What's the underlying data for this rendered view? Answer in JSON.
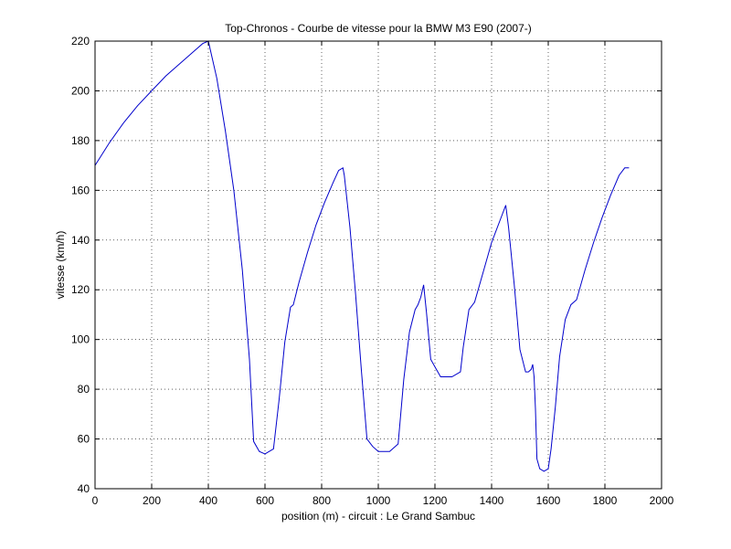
{
  "chart_data": {
    "type": "line",
    "title": "Top-Chronos - Courbe de vitesse pour la BMW M3 E90 (2007-)",
    "xlabel": "position (m) - circuit : Le Grand Sambuc",
    "ylabel": "vitesse (km/h)",
    "xlim": [
      0,
      2000
    ],
    "ylim": [
      40,
      220
    ],
    "xticks": [
      "0",
      "200",
      "400",
      "600",
      "800",
      "1000",
      "1200",
      "1400",
      "1600",
      "1800",
      "2000"
    ],
    "yticks": [
      "40",
      "60",
      "80",
      "100",
      "120",
      "140",
      "160",
      "180",
      "200",
      "220"
    ],
    "grid": true,
    "series": [
      {
        "color": "#0000cc",
        "x": [
          0,
          50,
          100,
          150,
          200,
          250,
          300,
          350,
          380,
          400,
          430,
          460,
          490,
          520,
          545,
          560,
          580,
          600,
          615,
          630,
          650,
          670,
          690,
          700,
          720,
          750,
          780,
          810,
          840,
          860,
          875,
          880,
          900,
          920,
          940,
          960,
          980,
          1000,
          1020,
          1040,
          1060,
          1070,
          1090,
          1110,
          1130,
          1140,
          1150,
          1160,
          1170,
          1185,
          1200,
          1220,
          1240,
          1260,
          1290,
          1300,
          1320,
          1340,
          1370,
          1400,
          1430,
          1450,
          1460,
          1480,
          1500,
          1520,
          1530,
          1540,
          1545,
          1550,
          1555,
          1560,
          1570,
          1585,
          1600,
          1610,
          1625,
          1640,
          1660,
          1680,
          1700,
          1730,
          1760,
          1790,
          1820,
          1850,
          1870,
          1885
        ],
        "values": [
          170,
          179,
          187,
          194,
          200,
          206,
          211,
          216,
          219,
          220,
          205,
          184,
          160,
          128,
          92,
          59,
          55,
          54,
          55,
          56,
          76,
          99,
          113,
          114,
          123,
          135,
          146,
          155,
          163,
          168,
          169,
          166,
          145,
          118,
          88,
          60,
          57,
          55,
          55,
          55,
          57,
          58,
          84,
          103,
          112,
          114,
          117,
          122,
          111,
          92,
          89,
          85,
          85,
          85,
          87,
          97,
          112,
          115,
          127,
          139,
          148,
          154,
          145,
          122,
          96,
          87,
          87,
          88,
          90,
          85,
          72,
          52,
          48,
          47,
          48,
          56,
          73,
          93,
          108,
          114,
          116,
          128,
          139,
          149,
          158,
          166,
          169,
          169
        ]
      }
    ]
  }
}
